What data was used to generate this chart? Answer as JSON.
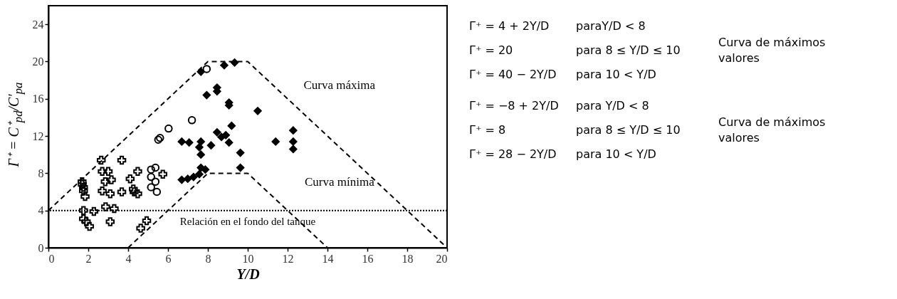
{
  "chart_data": {
    "type": "scatter",
    "xlabel": "Y/D",
    "ylabel": "Γ⁺ = C⁺$_{pd}$/C′$_{pa}$",
    "xlim": [
      0,
      20
    ],
    "ylim": [
      0,
      26
    ],
    "xticks": [
      0,
      2,
      4,
      6,
      8,
      10,
      12,
      14,
      16,
      18,
      20
    ],
    "yticks": [
      0,
      4,
      8,
      12,
      16,
      20,
      24
    ],
    "grid": false,
    "series": [
      {
        "marker": "cross",
        "color": "#000000",
        "x": [
          1.69,
          1.76,
          1.76,
          1.7,
          1.84,
          1.76,
          1.76,
          1.9,
          2.06,
          2.28,
          2.65,
          2.7,
          3.0,
          2.85,
          3.16,
          2.7,
          3.1,
          3.68,
          3.68,
          2.87,
          3.3,
          3.1,
          4.1,
          4.26,
          4.48,
          4.48,
          4.3,
          4.63,
          4.93,
          5.74
        ],
        "values": [
          7.1,
          6.5,
          6.1,
          6.8,
          5.5,
          4.0,
          3.1,
          2.8,
          2.3,
          3.9,
          9.4,
          8.2,
          8.2,
          7.1,
          7.3,
          6.1,
          5.8,
          9.4,
          6.0,
          4.4,
          4.2,
          2.8,
          7.4,
          6.3,
          8.2,
          5.8,
          6.0,
          2.1,
          2.9,
          7.9
        ]
      },
      {
        "marker": "circle",
        "color": "#000000",
        "x": [
          5.15,
          5.37,
          5.15,
          5.37,
          5.15,
          5.44,
          5.51,
          5.6,
          6.03,
          7.2,
          7.94
        ],
        "values": [
          8.4,
          8.6,
          7.6,
          7.1,
          6.5,
          6.0,
          11.6,
          11.8,
          12.8,
          13.7,
          19.2
        ]
      },
      {
        "marker": "diamond",
        "color": "#000000",
        "x": [
          7.65,
          8.82,
          9.34,
          7.94,
          8.46,
          8.46,
          9.06,
          9.06,
          10.5,
          6.69,
          7.06,
          7.65,
          7.57,
          7.65,
          8.16,
          8.46,
          8.68,
          8.9,
          9.19,
          9.06,
          9.63,
          11.4,
          12.28,
          12.28,
          12.28,
          6.69,
          6.99,
          7.28,
          7.57,
          7.65,
          9.63,
          7.87
        ],
        "values": [
          18.9,
          19.6,
          19.9,
          16.4,
          17.2,
          16.8,
          15.6,
          15.3,
          14.7,
          11.4,
          11.3,
          11.4,
          10.8,
          10.0,
          11.0,
          12.4,
          11.9,
          12.1,
          13.1,
          11.3,
          10.2,
          11.4,
          12.6,
          11.4,
          10.6,
          7.3,
          7.4,
          7.6,
          7.9,
          8.6,
          8.6,
          8.4
        ]
      },
      {
        "type": "line",
        "line_style": "dashed",
        "marker": "none",
        "color": "#000000",
        "x": [
          0,
          8,
          10,
          20
        ],
        "values": [
          4,
          20,
          20,
          0
        ]
      },
      {
        "type": "line",
        "line_style": "dashed",
        "marker": "none",
        "color": "#000000",
        "x": [
          4,
          8,
          10,
          14
        ],
        "values": [
          0,
          8,
          8,
          0
        ]
      }
    ],
    "ref_lines": [
      {
        "axis": "y",
        "value": 4,
        "label": "Relación en el fondo del tanque",
        "color": "#000000",
        "line_style": "dotted"
      }
    ],
    "annotations": [
      "Curva máxima",
      "Curva mínima",
      "Γ⁺ = 4 + 2Y/D",
      "paraY/D < 8",
      "Γ⁺ = 20",
      "para 8 ≤ Y/D ≤ 10",
      "Γ⁺ = 40 − 2Y/D",
      "para 10 < Y/D",
      "Curva de máximos valores",
      "Γ⁺ = −8 + 2Y/D",
      "para Y/D < 8",
      "Γ⁺ = 8",
      "para 8 ≤ Y/D ≤ 10",
      "Γ⁺ = 28 − 2Y/D",
      "para 10 < Y/D",
      "Curva de máximos valores"
    ]
  }
}
